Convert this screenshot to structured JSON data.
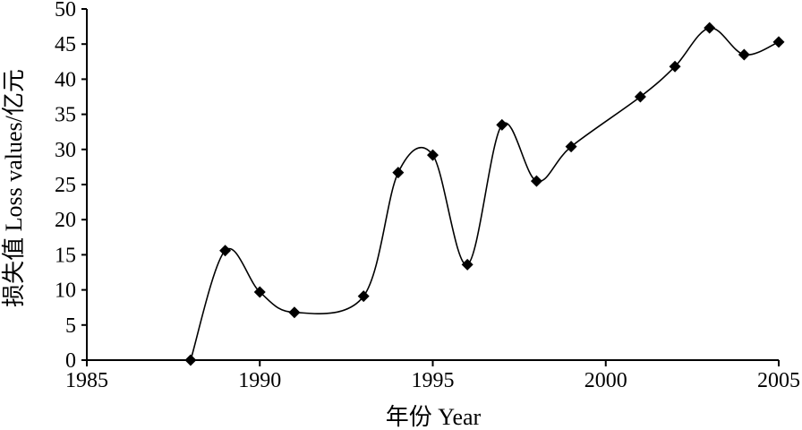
{
  "chart_data": {
    "type": "line",
    "title": "",
    "xlabel": "年份 Year",
    "ylabel": "损失值 Loss values/亿元",
    "xlim": [
      1985,
      2005
    ],
    "ylim": [
      0,
      50
    ],
    "x_ticks": [
      "1985",
      "1990",
      "1995",
      "2000",
      "2005"
    ],
    "y_ticks": [
      "0",
      "5",
      "10",
      "15",
      "20",
      "25",
      "30",
      "35",
      "40",
      "45",
      "50"
    ],
    "grid": false,
    "legend": "none",
    "marker": "diamond",
    "smooth": true,
    "series": [
      {
        "color": "#000000",
        "x": [
          1988,
          1989,
          1990,
          1991,
          1993,
          1994,
          1995,
          1996,
          1997,
          1998,
          1999,
          2001,
          2002,
          2003,
          2004,
          2005
        ],
        "y": [
          0,
          15.6,
          9.7,
          6.8,
          9.1,
          26.7,
          29.2,
          13.6,
          33.5,
          25.5,
          30.4,
          37.5,
          41.8,
          47.3,
          43.5,
          45.3
        ]
      }
    ]
  }
}
